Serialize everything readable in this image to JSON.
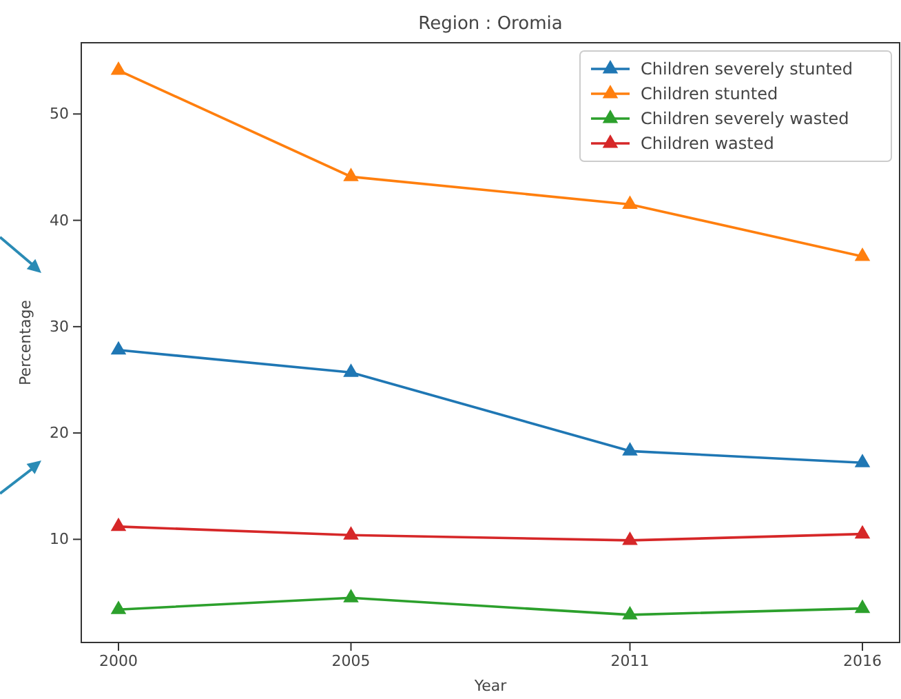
{
  "chart_data": {
    "type": "line",
    "title": "Region : Oromia",
    "xlabel": "Year",
    "ylabel": "Percentage",
    "x": [
      2000,
      2005,
      2011,
      2016
    ],
    "series": [
      {
        "name": "Children severely stunted",
        "color": "#1f77b4",
        "values": [
          27.8,
          25.7,
          18.3,
          17.2
        ]
      },
      {
        "name": "Children stunted",
        "color": "#ff7f0e",
        "values": [
          54.1,
          44.1,
          41.5,
          36.6
        ]
      },
      {
        "name": "Children severely wasted",
        "color": "#2ca02c",
        "values": [
          3.4,
          4.5,
          2.9,
          3.5
        ]
      },
      {
        "name": "Children wasted",
        "color": "#d62728",
        "values": [
          11.2,
          10.4,
          9.9,
          10.5
        ]
      }
    ],
    "xlim": [
      1999.2,
      2016.8
    ],
    "xticks": [
      2000,
      2005,
      2011,
      2016
    ],
    "ylim": [
      0.3,
      56.7
    ],
    "yticks": [
      10,
      20,
      30,
      40,
      50
    ],
    "grid": false,
    "legend": "top right",
    "marker": "triangle",
    "line_style": "solid"
  }
}
